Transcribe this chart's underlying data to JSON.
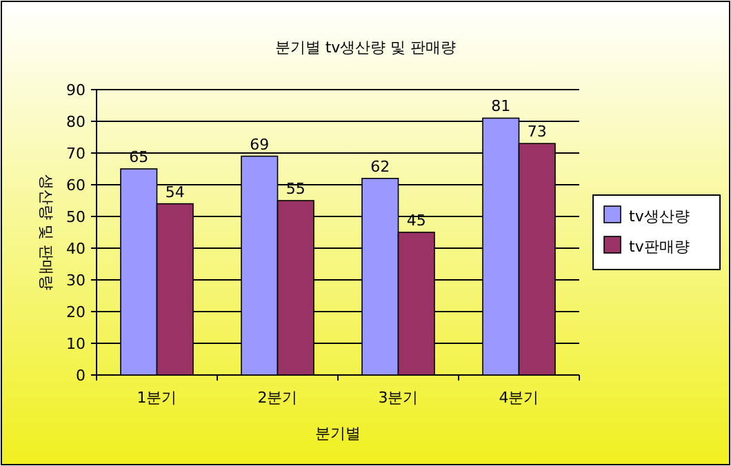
{
  "chart_data": {
    "type": "bar",
    "title": "분기별 tv생산량 및 판매량",
    "xlabel": "분기별",
    "ylabel": "생산량 및 판매량",
    "categories": [
      "1분기",
      "2분기",
      "3분기",
      "4분기"
    ],
    "series": [
      {
        "name": "tv생산량",
        "color": "#9999ff",
        "values": [
          65,
          69,
          62,
          81
        ]
      },
      {
        "name": "tv판매량",
        "color": "#993366",
        "values": [
          54,
          55,
          45,
          73
        ]
      }
    ],
    "ylim": [
      0,
      90
    ],
    "yticks": [
      0,
      10,
      20,
      30,
      40,
      50,
      60,
      70,
      80,
      90
    ],
    "grid": "y",
    "legend": "right",
    "data_labels": true
  }
}
